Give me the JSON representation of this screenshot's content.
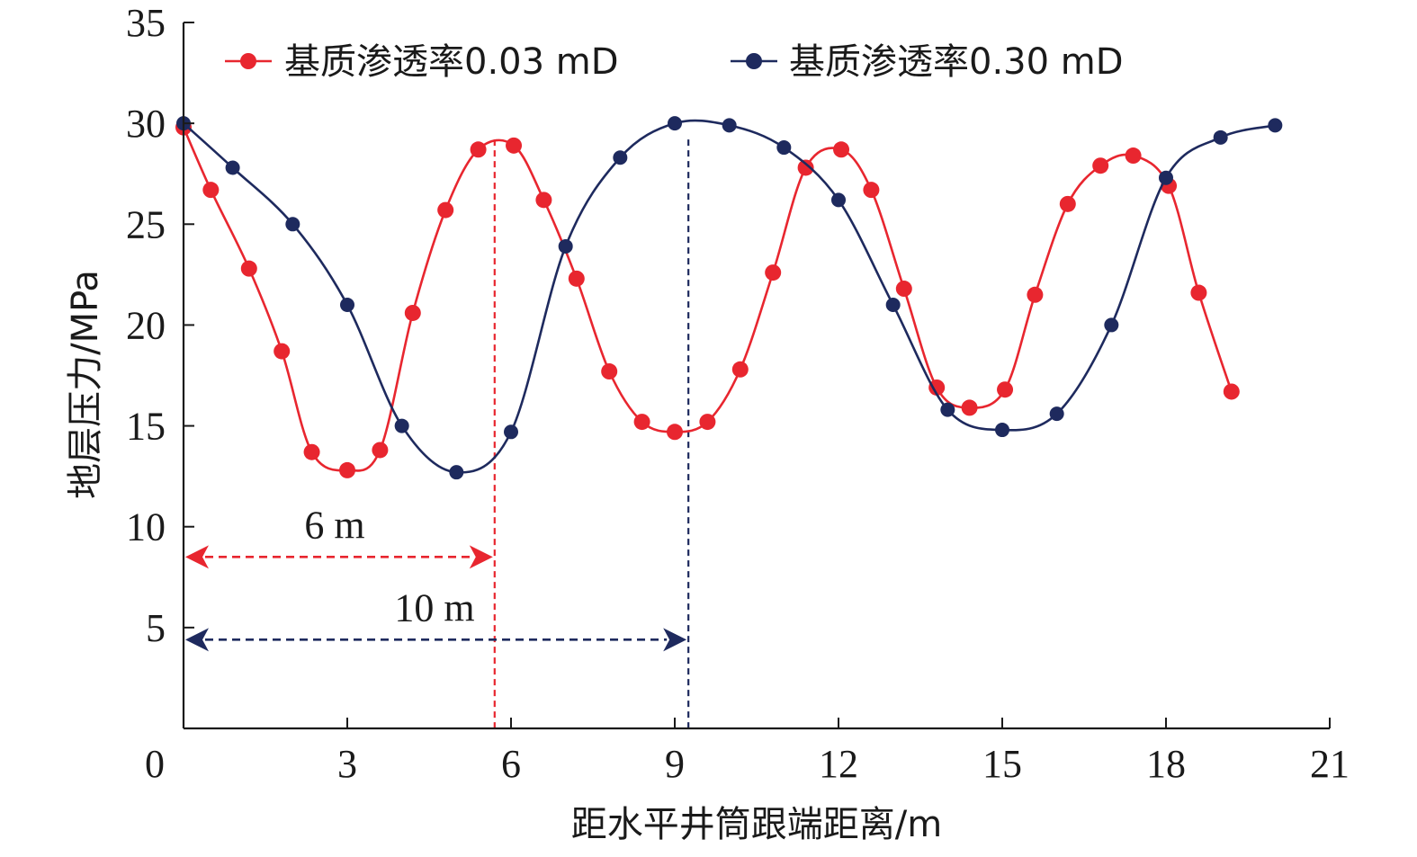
{
  "chart_data": {
    "type": "line",
    "xlabel": "距水平井筒跟端距离/m",
    "ylabel": "地层压力/MPa",
    "xlim": [
      0,
      21
    ],
    "ylim": [
      0,
      35
    ],
    "xticks": [
      0,
      3,
      6,
      9,
      12,
      15,
      18,
      21
    ],
    "yticks": [
      5,
      10,
      15,
      20,
      25,
      30,
      35
    ],
    "legend_position": "top",
    "grid": false,
    "series": [
      {
        "name": "基质渗透率0.03 mD",
        "color": "#e8262f",
        "points": [
          [
            0.0,
            29.8
          ],
          [
            0.5,
            26.7
          ],
          [
            1.2,
            22.8
          ],
          [
            1.8,
            18.7
          ],
          [
            2.35,
            13.7
          ],
          [
            3.0,
            12.8
          ],
          [
            3.6,
            13.8
          ],
          [
            4.2,
            20.6
          ],
          [
            4.8,
            25.7
          ],
          [
            5.4,
            28.7
          ],
          [
            6.05,
            28.9
          ],
          [
            6.6,
            26.2
          ],
          [
            7.2,
            22.3
          ],
          [
            7.8,
            17.7
          ],
          [
            8.4,
            15.2
          ],
          [
            9.0,
            14.7
          ],
          [
            9.6,
            15.2
          ],
          [
            10.2,
            17.8
          ],
          [
            10.8,
            22.6
          ],
          [
            11.4,
            27.8
          ],
          [
            12.05,
            28.7
          ],
          [
            12.6,
            26.7
          ],
          [
            13.2,
            21.8
          ],
          [
            13.8,
            16.9
          ],
          [
            14.4,
            15.9
          ],
          [
            15.05,
            16.8
          ],
          [
            15.6,
            21.5
          ],
          [
            16.2,
            26.0
          ],
          [
            16.8,
            27.9
          ],
          [
            17.4,
            28.4
          ],
          [
            18.05,
            26.9
          ],
          [
            18.6,
            21.6
          ],
          [
            19.2,
            16.7
          ]
        ]
      },
      {
        "name": "基质渗透率0.30 mD",
        "color": "#1e2a5e",
        "points": [
          [
            0.0,
            30.0
          ],
          [
            0.9,
            27.8
          ],
          [
            2.0,
            25.0
          ],
          [
            3.0,
            21.0
          ],
          [
            4.0,
            15.0
          ],
          [
            5.0,
            12.7
          ],
          [
            6.0,
            14.7
          ],
          [
            7.0,
            23.9
          ],
          [
            8.0,
            28.3
          ],
          [
            9.0,
            30.0
          ],
          [
            10.0,
            29.9
          ],
          [
            11.0,
            28.8
          ],
          [
            12.0,
            26.2
          ],
          [
            13.0,
            21.0
          ],
          [
            14.0,
            15.8
          ],
          [
            15.0,
            14.8
          ],
          [
            16.0,
            15.6
          ],
          [
            17.0,
            20.0
          ],
          [
            18.0,
            27.3
          ],
          [
            19.0,
            29.3
          ],
          [
            20.0,
            29.9
          ]
        ]
      }
    ],
    "annotations": [
      {
        "text": "6 m",
        "color": "#e8262f",
        "x_from": 0.0,
        "x_to": 5.7,
        "y": 8.5
      },
      {
        "text": "10 m",
        "color": "#1e2a5e",
        "x_from": 0.0,
        "x_to": 9.25,
        "y": 4.4
      }
    ],
    "vlines": [
      {
        "x": 5.7,
        "color": "#e8262f"
      },
      {
        "x": 9.25,
        "color": "#1e2a5e"
      }
    ]
  }
}
